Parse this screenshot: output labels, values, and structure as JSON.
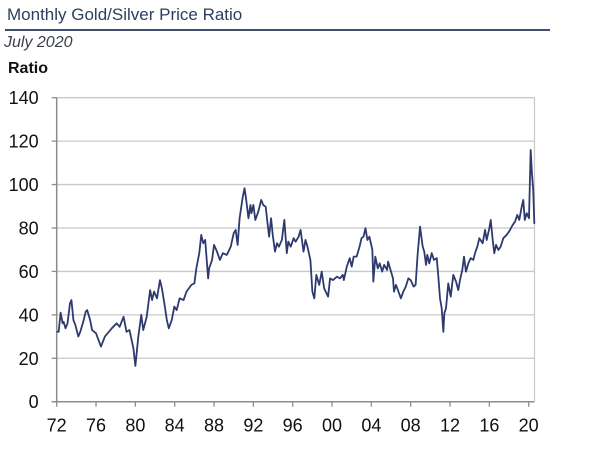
{
  "header": {
    "title": "Monthly Gold/Silver Price Ratio",
    "subtitle": "July 2020",
    "y_axis_title": "Ratio"
  },
  "colors": {
    "title": "#2b3f5e",
    "line": "#2e3a6e",
    "gridline": "#c8c8c8",
    "axis": "#8c8c8c"
  },
  "chart_data": {
    "type": "line",
    "title": "Monthly Gold/Silver Price Ratio",
    "subtitle": "July 2020",
    "xlabel": "",
    "ylabel": "Ratio",
    "xlim": [
      1972,
      2020.57
    ],
    "ylim": [
      0,
      140
    ],
    "grid": true,
    "legend": "none",
    "x_ticks": [
      1972,
      1976,
      1980,
      1984,
      1988,
      1992,
      1996,
      2000,
      2004,
      2008,
      2012,
      2016,
      2020
    ],
    "x_tick_labels": [
      "72",
      "76",
      "80",
      "84",
      "88",
      "92",
      "96",
      "00",
      "04",
      "08",
      "12",
      "16",
      "20"
    ],
    "y_ticks": [
      0,
      20,
      40,
      60,
      80,
      100,
      120,
      140
    ],
    "y_tick_labels": [
      "0",
      "20",
      "40",
      "60",
      "80",
      "100",
      "120",
      "140"
    ],
    "series": [
      {
        "name": "Gold/Silver Price Ratio",
        "x": [
          1972.06,
          1972.2,
          1972.4,
          1972.6,
          1972.7,
          1972.9,
          1973.1,
          1973.35,
          1973.5,
          1973.7,
          1973.9,
          1974.2,
          1974.4,
          1974.7,
          1974.95,
          1975.1,
          1975.4,
          1975.6,
          1976.0,
          1976.5,
          1976.9,
          1977.6,
          1978.1,
          1978.4,
          1978.8,
          1979.1,
          1979.4,
          1979.8,
          1980.0,
          1980.3,
          1980.6,
          1980.8,
          1981.15,
          1981.5,
          1981.7,
          1981.9,
          1982.2,
          1982.5,
          1982.7,
          1983.0,
          1983.2,
          1983.4,
          1983.7,
          1983.96,
          1984.2,
          1984.5,
          1984.9,
          1985.2,
          1985.7,
          1986.0,
          1986.2,
          1986.5,
          1986.7,
          1986.9,
          1987.1,
          1987.4,
          1987.5,
          1987.8,
          1988.0,
          1988.3,
          1988.6,
          1988.9,
          1989.3,
          1989.7,
          1990.0,
          1990.2,
          1990.4,
          1990.6,
          1990.9,
          1991.1,
          1991.25,
          1991.5,
          1991.7,
          1991.8,
          1992.0,
          1992.2,
          1992.5,
          1992.8,
          1993.0,
          1993.25,
          1993.46,
          1993.6,
          1993.8,
          1993.97,
          1994.2,
          1994.4,
          1994.6,
          1994.9,
          1995.15,
          1995.4,
          1995.55,
          1995.8,
          1996.1,
          1996.3,
          1996.6,
          1996.8,
          1997.1,
          1997.3,
          1997.5,
          1997.8,
          1998.0,
          1998.2,
          1998.4,
          1998.7,
          1998.95,
          1999.2,
          1999.6,
          1999.8,
          2000.1,
          2000.5,
          2000.8,
          2001.1,
          2001.2,
          2001.5,
          2001.8,
          2002.0,
          2002.2,
          2002.5,
          2002.8,
          2003.0,
          2003.2,
          2003.4,
          2003.6,
          2003.8,
          2004.1,
          2004.2,
          2004.4,
          2004.65,
          2004.85,
          2005.1,
          2005.3,
          2005.6,
          2005.7,
          2006.0,
          2006.2,
          2006.3,
          2006.5,
          2006.7,
          2007.0,
          2007.25,
          2007.5,
          2007.76,
          2008.0,
          2008.3,
          2008.5,
          2008.7,
          2008.95,
          2009.22,
          2009.38,
          2009.56,
          2009.69,
          2009.89,
          2010.14,
          2010.37,
          2010.65,
          2010.81,
          2010.98,
          2011.15,
          2011.32,
          2011.42,
          2011.59,
          2011.82,
          2012.07,
          2012.33,
          2012.61,
          2012.84,
          2013.01,
          2013.25,
          2013.42,
          2013.62,
          2013.86,
          2014.1,
          2014.37,
          2014.54,
          2014.77,
          2014.98,
          2015.32,
          2015.56,
          2015.73,
          2016.0,
          2016.14,
          2016.34,
          2016.5,
          2016.68,
          2016.91,
          2017.15,
          2017.42,
          2017.76,
          2018.1,
          2018.37,
          2018.61,
          2018.84,
          2019.04,
          2019.29,
          2019.45,
          2019.6,
          2019.8,
          2020.03,
          2020.2,
          2020.33,
          2020.46,
          2020.57
        ],
        "values": [
          32.2,
          32.2,
          41.0,
          36.1,
          36.8,
          33.8,
          36.1,
          45.3,
          46.8,
          37.6,
          35.3,
          30.0,
          32.2,
          36.8,
          41.5,
          42.2,
          37.6,
          33.0,
          31.5,
          25.4,
          30.0,
          33.8,
          36.1,
          34.5,
          39.1,
          32.2,
          33.0,
          24.6,
          16.5,
          30.0,
          40.0,
          33.0,
          39.0,
          51.4,
          46.8,
          50.7,
          47.6,
          56.0,
          52.2,
          43.8,
          37.6,
          33.8,
          37.6,
          43.8,
          42.2,
          47.6,
          46.8,
          50.7,
          53.8,
          54.5,
          61.4,
          68.4,
          76.8,
          73.0,
          74.5,
          56.8,
          61.4,
          65.3,
          72.2,
          69.1,
          65.3,
          68.4,
          67.6,
          71.4,
          77.6,
          79.1,
          72.2,
          84.5,
          93.7,
          98.3,
          93.7,
          84.5,
          90.6,
          86.8,
          90.6,
          83.7,
          87.5,
          92.9,
          90.6,
          89.8,
          81.4,
          76.0,
          84.5,
          76.8,
          69.1,
          73.0,
          71.4,
          74.5,
          83.7,
          68.4,
          73.7,
          71.4,
          75.3,
          73.7,
          76.0,
          79.1,
          69.1,
          74.5,
          71.4,
          65.3,
          50.7,
          47.6,
          58.4,
          53.8,
          59.9,
          52.2,
          48.4,
          56.8,
          56.0,
          57.6,
          56.8,
          58.4,
          56.0,
          62.2,
          66.1,
          62.2,
          66.8,
          66.8,
          71.4,
          75.3,
          76.0,
          79.9,
          74.5,
          76.0,
          69.9,
          55.3,
          66.8,
          61.4,
          63.7,
          59.9,
          63.0,
          60.7,
          64.5,
          59.9,
          56.8,
          50.7,
          53.8,
          51.4,
          47.6,
          50.7,
          53.0,
          56.8,
          56.0,
          53.0,
          53.8,
          67.6,
          80.6,
          71.4,
          69.1,
          63.0,
          67.6,
          63.7,
          68.4,
          65.3,
          66.1,
          57.6,
          47.6,
          43.0,
          32.2,
          40.7,
          43.0,
          54.5,
          48.4,
          58.4,
          55.3,
          51.4,
          56.0,
          60.7,
          66.8,
          59.9,
          63.7,
          66.1,
          65.3,
          68.4,
          71.4,
          75.3,
          73.0,
          79.1,
          74.5,
          79.9,
          83.7,
          74.5,
          68.4,
          72.2,
          69.9,
          71.4,
          75.3,
          76.8,
          79.1,
          81.4,
          82.9,
          86.0,
          83.7,
          89.8,
          92.9,
          83.7,
          86.8,
          84.5,
          115.9,
          105.2,
          97.5,
          82.2
        ]
      }
    ]
  }
}
